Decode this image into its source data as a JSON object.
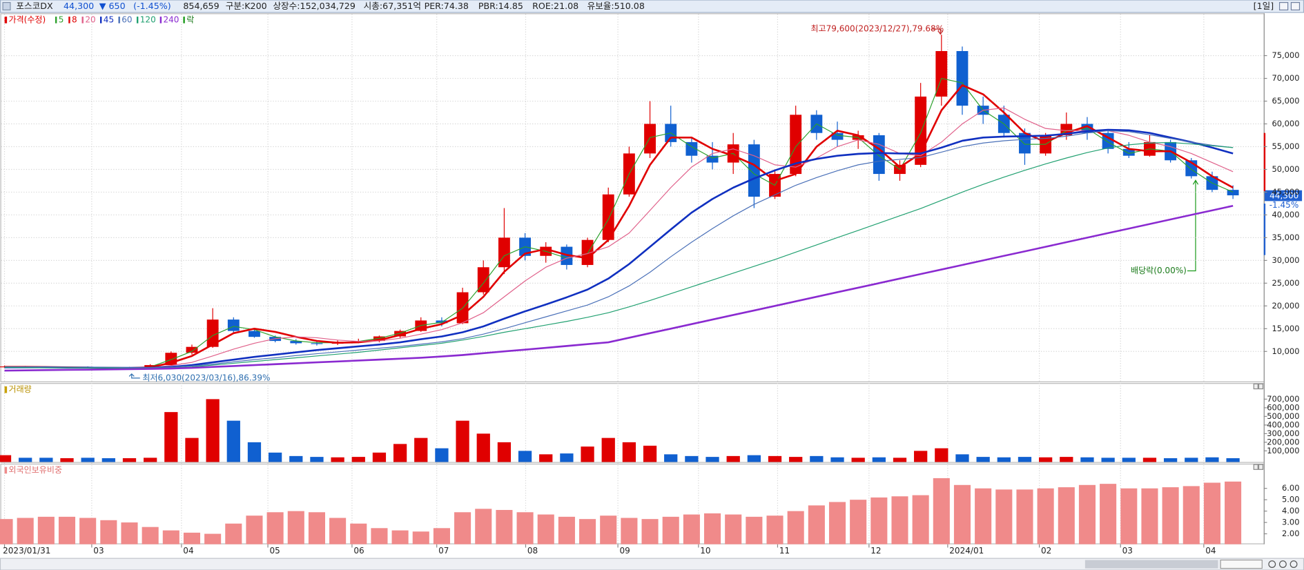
{
  "header": {
    "name": "포스코DX",
    "price": "44,300",
    "change": "▼ 650",
    "change_pct": "(-1.45%)",
    "volume": "854,659",
    "group": "구분:K200",
    "shares": "상장수:152,034,729",
    "market_cap": "시총:67,351억",
    "per": "PER:74.38",
    "pbr": "PBR:14.85",
    "roe": "ROE:21.08",
    "reserve": "유보율:510.08",
    "period": "[1일]"
  },
  "chart_data": [
    {
      "type": "candlestick",
      "candle_label": "가격(수정)",
      "dividend_label": "락",
      "up_color": "#e00000",
      "down_color": "#1060d0",
      "candles": {
        "open": [
          6600,
          6700,
          6500,
          6400,
          6500,
          6400,
          6300,
          6500,
          7000,
          9700,
          11000,
          17000,
          14500,
          13200,
          12300,
          11800,
          11700,
          12100,
          12300,
          13300,
          14500,
          16800,
          16200,
          23000,
          28500,
          35000,
          31000,
          33000,
          29000,
          34500,
          44500,
          53500,
          60000,
          56000,
          53000,
          51500,
          55500,
          44000,
          49000,
          62000,
          58000,
          56500,
          57500,
          49000,
          51000,
          66000,
          76000,
          64000,
          62000,
          58000,
          53500,
          57500,
          60000,
          58000,
          54500,
          53000,
          56000,
          52000,
          48500,
          45500
        ],
        "high": [
          6900,
          6800,
          6700,
          6600,
          6700,
          6500,
          6600,
          7200,
          10000,
          11500,
          19500,
          17500,
          15000,
          13500,
          12700,
          12200,
          12400,
          12800,
          13500,
          14800,
          17500,
          17500,
          24000,
          30000,
          41500,
          36000,
          34000,
          33500,
          35000,
          46000,
          55000,
          65000,
          64000,
          57000,
          56000,
          58000,
          56500,
          50000,
          64000,
          63000,
          60500,
          58500,
          58000,
          52000,
          69000,
          79600,
          77000,
          66000,
          64000,
          59000,
          58000,
          62500,
          61500,
          58500,
          56000,
          57500,
          56500,
          52500,
          49500,
          46500
        ],
        "low": [
          6400,
          6400,
          6300,
          6300,
          6300,
          6030,
          6200,
          6400,
          6900,
          9300,
          10800,
          14000,
          13000,
          12000,
          11500,
          11300,
          11400,
          11800,
          12000,
          13000,
          14300,
          15500,
          16000,
          22500,
          27000,
          30000,
          29500,
          28000,
          28500,
          34000,
          44000,
          52500,
          55000,
          51500,
          50000,
          49000,
          41500,
          43500,
          48500,
          56500,
          55000,
          54500,
          47500,
          47500,
          50500,
          64000,
          62000,
          60000,
          57000,
          51000,
          53000,
          56500,
          56500,
          53500,
          52500,
          52800,
          51500,
          48000,
          45000,
          43500
        ],
        "close": [
          6700,
          6500,
          6400,
          6500,
          6400,
          6300,
          6500,
          7000,
          9700,
          11000,
          17000,
          14500,
          13200,
          12300,
          11800,
          11700,
          12100,
          12300,
          13300,
          14500,
          16800,
          16200,
          23000,
          28500,
          35000,
          31000,
          33000,
          29000,
          34500,
          44500,
          53500,
          60000,
          56000,
          53000,
          51500,
          55500,
          44000,
          49000,
          62000,
          58000,
          56500,
          57500,
          49000,
          51000,
          66000,
          76000,
          64000,
          62000,
          58000,
          53500,
          57500,
          60000,
          58000,
          54500,
          53000,
          56000,
          52000,
          48500,
          45500,
          44300
        ]
      },
      "series": [
        {
          "name": "5",
          "color": "#2ca02c",
          "line_width": 1,
          "values": [
            6650,
            6600,
            6500,
            6450,
            6450,
            6400,
            6350,
            6600,
            8200,
            10000,
            13500,
            15500,
            14800,
            13200,
            12300,
            11900,
            11900,
            12200,
            12900,
            14000,
            15700,
            16400,
            19500,
            25000,
            31000,
            33000,
            32000,
            30500,
            31500,
            39000,
            49000,
            57000,
            58000,
            55000,
            52500,
            53500,
            49000,
            46500,
            55000,
            60000,
            57500,
            57000,
            53000,
            50000,
            58000,
            70000,
            69000,
            63000,
            60000,
            55500,
            55500,
            58500,
            59000,
            56000,
            53500,
            54500,
            54000,
            50000,
            47000,
            45000
          ]
        },
        {
          "name": "8",
          "color": "#e00000",
          "line_width": 2.2,
          "values": [
            6600,
            6600,
            6550,
            6500,
            6450,
            6400,
            6350,
            6500,
            7500,
            9000,
            11500,
            14000,
            15000,
            14300,
            13200,
            12300,
            11900,
            12000,
            12500,
            13600,
            15000,
            16000,
            18000,
            22000,
            27500,
            31500,
            32500,
            31200,
            30500,
            34500,
            42000,
            51000,
            57000,
            57000,
            54500,
            53000,
            51000,
            47500,
            49000,
            55000,
            58500,
            57500,
            54500,
            50500,
            53500,
            63000,
            68500,
            66500,
            62500,
            58000,
            56000,
            58000,
            59500,
            57000,
            54500,
            54000,
            54000,
            51500,
            48500,
            46000
          ]
        },
        {
          "name": "20",
          "color": "#e0608a",
          "line_width": 1,
          "values": [
            6600,
            6600,
            6550,
            6500,
            6450,
            6450,
            6400,
            6450,
            6900,
            7600,
            9000,
            10500,
            11800,
            12800,
            13200,
            13000,
            12500,
            12200,
            12300,
            12900,
            13800,
            14800,
            16300,
            18500,
            22000,
            25500,
            28500,
            30500,
            31500,
            33000,
            36000,
            41000,
            46000,
            50500,
            53500,
            54500,
            53000,
            51000,
            50500,
            52500,
            55000,
            56500,
            55500,
            53500,
            53000,
            56000,
            60000,
            63000,
            63500,
            61000,
            59000,
            58500,
            58500,
            58500,
            57500,
            56000,
            55000,
            53500,
            51500,
            49500
          ]
        },
        {
          "name": "45",
          "color": "#1030c0",
          "line_width": 2.2,
          "values": [
            6500,
            6500,
            6500,
            6450,
            6450,
            6400,
            6400,
            6400,
            6600,
            7000,
            7600,
            8200,
            8800,
            9300,
            9800,
            10300,
            10700,
            11100,
            11500,
            12000,
            12700,
            13300,
            14200,
            15500,
            17200,
            18800,
            20300,
            21900,
            23600,
            26000,
            29200,
            33000,
            36800,
            40500,
            43500,
            46000,
            48000,
            49800,
            51300,
            52300,
            53000,
            53400,
            53600,
            53500,
            53500,
            54800,
            56300,
            57000,
            57200,
            57300,
            57400,
            57800,
            58400,
            58700,
            58600,
            58000,
            57000,
            56000,
            54800,
            53500
          ]
        },
        {
          "name": "60",
          "color": "#4a70b8",
          "line_width": 1,
          "values": [
            6600,
            6600,
            6550,
            6550,
            6500,
            6500,
            6450,
            6450,
            6550,
            6800,
            7200,
            7700,
            8200,
            8600,
            9100,
            9500,
            9900,
            10300,
            10700,
            11100,
            11600,
            12100,
            12800,
            13800,
            15000,
            16300,
            17600,
            18900,
            20200,
            22000,
            24400,
            27400,
            30800,
            34000,
            37000,
            39800,
            42300,
            44400,
            46500,
            48200,
            49700,
            51000,
            51800,
            52200,
            52600,
            53800,
            55000,
            55800,
            56300,
            56600,
            56800,
            57300,
            58000,
            58500,
            58300,
            57600,
            56800,
            56000,
            55300,
            54800
          ]
        },
        {
          "name": "120",
          "color": "#20a070",
          "line_width": 1,
          "values": [
            6500,
            6450,
            6400,
            6400,
            6350,
            6350,
            6300,
            6300,
            6400,
            6600,
            7000,
            7400,
            7800,
            8200,
            8600,
            9000,
            9400,
            9800,
            10300,
            10800,
            11300,
            11800,
            12500,
            13300,
            14200,
            15000,
            15800,
            16600,
            17500,
            18500,
            19800,
            21200,
            22700,
            24200,
            25700,
            27200,
            28700,
            30200,
            31800,
            33400,
            35000,
            36600,
            38200,
            39800,
            41400,
            43200,
            45000,
            46700,
            48300,
            49800,
            51200,
            52500,
            53700,
            54700,
            55400,
            55800,
            55900,
            55600,
            55200,
            54800
          ]
        },
        {
          "name": "240",
          "color": "#8a2ad0",
          "line_width": 2.2,
          "values": [
            5800,
            5850,
            5900,
            5950,
            6000,
            6050,
            6100,
            6150,
            6250,
            6400,
            6600,
            6800,
            7000,
            7200,
            7400,
            7600,
            7800,
            8000,
            8200,
            8400,
            8600,
            8900,
            9200,
            9600,
            10000,
            10400,
            10800,
            11200,
            11600,
            12000,
            13000,
            14000,
            15000,
            16000,
            17000,
            18000,
            19000,
            20000,
            21000,
            22000,
            23000,
            24000,
            25000,
            26000,
            27000,
            28000,
            29000,
            30000,
            31000,
            32000,
            33000,
            34000,
            35000,
            36000,
            37000,
            38000,
            39000,
            40000,
            41000,
            42000
          ]
        }
      ],
      "ylim": [
        3600,
        84300
      ],
      "yticks": [
        {
          "value": 10000,
          "label": "10,000"
        },
        {
          "value": 15000,
          "label": "15,000"
        },
        {
          "value": 20000,
          "label": "20,000"
        },
        {
          "value": 25000,
          "label": "25,000"
        },
        {
          "value": 30000,
          "label": "30,000"
        },
        {
          "value": 35000,
          "label": "35,000"
        },
        {
          "value": 40000,
          "label": "40,000"
        },
        {
          "value": 45000,
          "label": "45,000"
        },
        {
          "value": 50000,
          "label": "50,000"
        },
        {
          "value": 55000,
          "label": "55,000"
        },
        {
          "value": 60000,
          "label": "60,000"
        },
        {
          "value": 65000,
          "label": "65,000"
        },
        {
          "value": 70000,
          "label": "70,000"
        },
        {
          "value": 75000,
          "label": "75,000"
        }
      ],
      "grid": true,
      "annotations": {
        "high": "최고79,600(2023/12/27),79.68%",
        "low": "최저6,030(2023/03/16),86.39%",
        "dividend": "배당락(0.00%)",
        "last_price": "44,300",
        "last_change": "-1.45%"
      }
    },
    {
      "type": "bar",
      "title": "거래량",
      "values": [
        50000,
        20000,
        20000,
        15000,
        20000,
        15000,
        15000,
        20000,
        550000,
        250000,
        700000,
        450000,
        200000,
        80000,
        40000,
        30000,
        25000,
        30000,
        80000,
        180000,
        250000,
        130000,
        450000,
        300000,
        200000,
        100000,
        60000,
        70000,
        150000,
        250000,
        200000,
        160000,
        60000,
        40000,
        30000,
        40000,
        50000,
        40000,
        30000,
        40000,
        25000,
        20000,
        25000,
        20000,
        100000,
        130000,
        60000,
        30000,
        25000,
        30000,
        25000,
        30000,
        25000,
        20000,
        20000,
        20000,
        15000,
        20000,
        25000,
        15000
      ],
      "ylim": [
        0,
        800000
      ],
      "yticks": [
        {
          "value": 100000,
          "label": "100,000"
        },
        {
          "value": 200000,
          "label": "200,000"
        },
        {
          "value": 300000,
          "label": "300,000"
        },
        {
          "value": 400000,
          "label": "400,000"
        },
        {
          "value": 500000,
          "label": "500,000"
        },
        {
          "value": 600000,
          "label": "600,000"
        },
        {
          "value": 700000,
          "label": "700,000"
        }
      ]
    },
    {
      "type": "bar",
      "title": "외국인보유비중",
      "color": "#f08a8a",
      "values": [
        3.3,
        3.4,
        3.5,
        3.5,
        3.4,
        3.2,
        3.0,
        2.6,
        2.3,
        2.1,
        2.0,
        2.9,
        3.6,
        3.9,
        4.0,
        3.9,
        3.4,
        2.9,
        2.5,
        2.3,
        2.2,
        2.5,
        3.9,
        4.2,
        4.1,
        3.9,
        3.7,
        3.5,
        3.3,
        3.6,
        3.4,
        3.3,
        3.5,
        3.7,
        3.8,
        3.7,
        3.5,
        3.6,
        4.0,
        4.5,
        4.8,
        5.0,
        5.2,
        5.3,
        5.4,
        6.9,
        6.3,
        6.0,
        5.9,
        5.9,
        6.0,
        6.1,
        6.3,
        6.4,
        6.0,
        6.0,
        6.1,
        6.2,
        6.5,
        6.6
      ],
      "ylim": [
        1.3,
        7.3
      ],
      "yticks": [
        {
          "value": 2,
          "label": "2.00"
        },
        {
          "value": 3,
          "label": "3.00"
        },
        {
          "value": 4,
          "label": "4.00"
        },
        {
          "value": 5,
          "label": "5.00"
        },
        {
          "value": 6,
          "label": "6.00"
        }
      ],
      "xticks": [
        {
          "value": 0,
          "label": "2023/01/31"
        },
        {
          "value": 4.19,
          "label": "03"
        },
        {
          "value": 8.5,
          "label": "04"
        },
        {
          "value": 12.65,
          "label": "05"
        },
        {
          "value": 16.69,
          "label": "06"
        },
        {
          "value": 20.76,
          "label": "07"
        },
        {
          "value": 25.03,
          "label": "08"
        },
        {
          "value": 29.46,
          "label": "09"
        },
        {
          "value": 33.33,
          "label": "10"
        },
        {
          "value": 37.13,
          "label": "11"
        },
        {
          "value": 41.52,
          "label": "12"
        },
        {
          "value": 45.3,
          "label": "2024/01"
        },
        {
          "value": 49.7,
          "label": "02"
        },
        {
          "value": 53.6,
          "label": "03"
        },
        {
          "value": 57.6,
          "label": "04"
        }
      ]
    }
  ]
}
